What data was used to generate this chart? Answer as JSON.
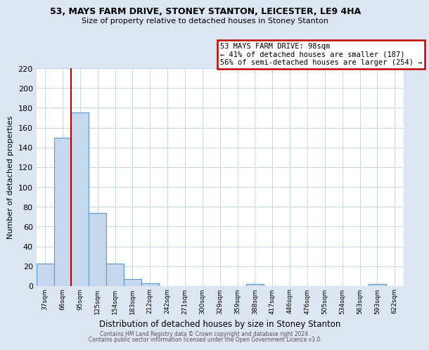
{
  "title": "53, MAYS FARM DRIVE, STONEY STANTON, LEICESTER, LE9 4HA",
  "subtitle": "Size of property relative to detached houses in Stoney Stanton",
  "xlabel": "Distribution of detached houses by size in Stoney Stanton",
  "ylabel": "Number of detached properties",
  "bin_labels": [
    "37sqm",
    "66sqm",
    "95sqm",
    "125sqm",
    "154sqm",
    "183sqm",
    "212sqm",
    "242sqm",
    "271sqm",
    "300sqm",
    "329sqm",
    "359sqm",
    "388sqm",
    "417sqm",
    "446sqm",
    "476sqm",
    "505sqm",
    "534sqm",
    "563sqm",
    "593sqm",
    "622sqm"
  ],
  "bar_heights": [
    23,
    150,
    175,
    74,
    23,
    7,
    3,
    0,
    0,
    0,
    0,
    0,
    2,
    0,
    0,
    0,
    0,
    0,
    0,
    2,
    0
  ],
  "bar_color": "#c5d8ed",
  "bar_edge_color": "#5b9bd5",
  "vline_color": "#c00000",
  "annotation_line1": "53 MAYS FARM DRIVE: 98sqm",
  "annotation_line2": "← 41% of detached houses are smaller (187)",
  "annotation_line3": "56% of semi-detached houses are larger (254) →",
  "annotation_box_color": "#ffffff",
  "annotation_box_edge_color": "#c00000",
  "ylim": [
    0,
    220
  ],
  "yticks": [
    0,
    20,
    40,
    60,
    80,
    100,
    120,
    140,
    160,
    180,
    200,
    220
  ],
  "grid_color": "#c8d8ea",
  "background_color": "#dce6f1",
  "plot_bg_color": "#ffffff",
  "footer_line1": "Contains HM Land Registry data © Crown copyright and database right 2024.",
  "footer_line2": "Contains public sector information licensed under the Open Government Licence v3.0."
}
